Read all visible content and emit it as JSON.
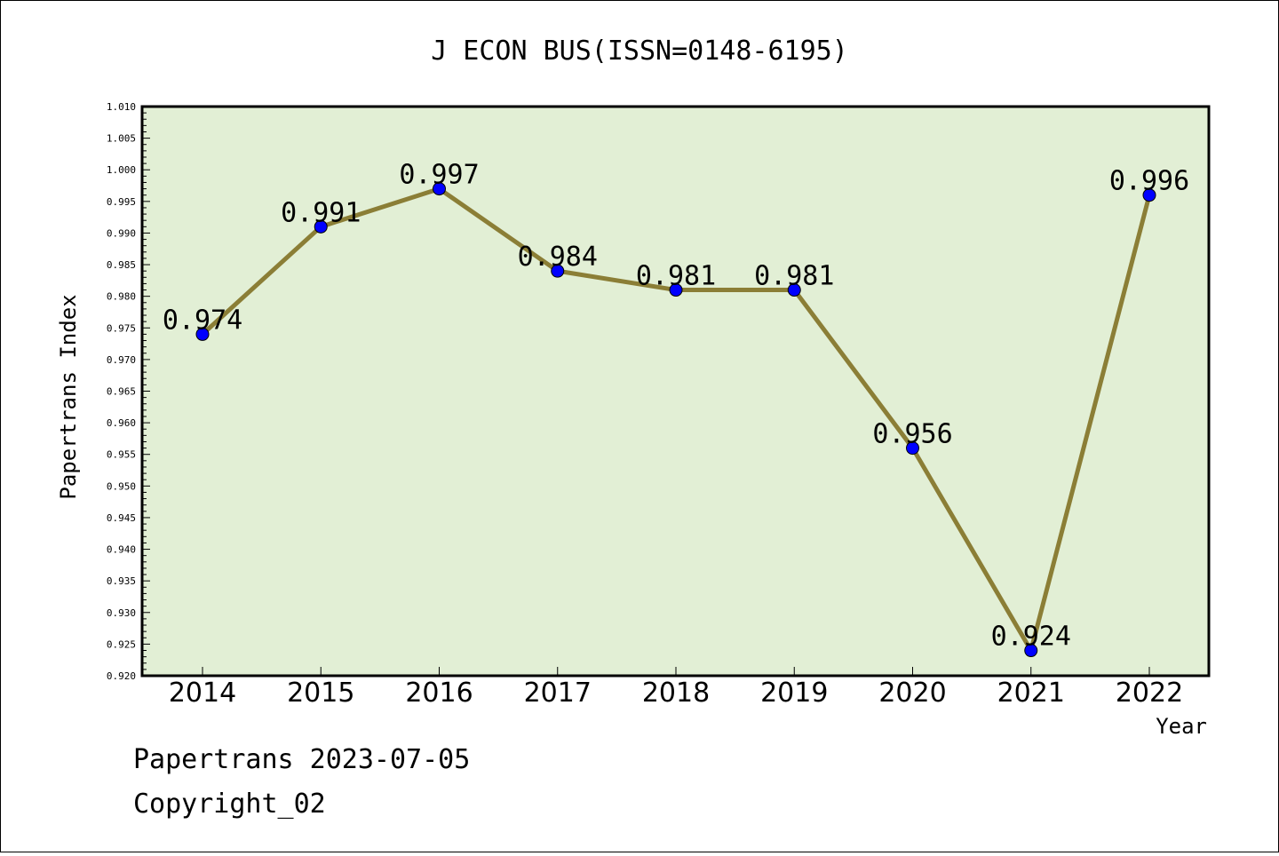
{
  "chart_data": {
    "type": "line",
    "title": "J ECON BUS(ISSN=0148-6195)",
    "xlabel": "Year",
    "ylabel": "Papertrans Index",
    "categories": [
      "2014",
      "2015",
      "2016",
      "2017",
      "2018",
      "2019",
      "2020",
      "2021",
      "2022"
    ],
    "values": [
      0.974,
      0.991,
      0.997,
      0.984,
      0.981,
      0.981,
      0.956,
      0.924,
      0.996
    ],
    "value_labels": [
      "0.974",
      "0.991",
      "0.997",
      "0.984",
      "0.981",
      "0.981",
      "0.956",
      "0.924",
      "0.996"
    ],
    "ylim": [
      0.92,
      1.01
    ],
    "yticks": [
      "0.920",
      "0.925",
      "0.930",
      "0.935",
      "0.940",
      "0.945",
      "0.950",
      "0.955",
      "0.960",
      "0.965",
      "0.970",
      "0.975",
      "0.980",
      "0.985",
      "0.990",
      "0.995",
      "1.000",
      "1.005",
      "1.010"
    ],
    "grid": false,
    "legend": "none",
    "colors": {
      "plot_background": "#e2efd5",
      "line": "#8b7e36",
      "marker": "#0000ff"
    }
  },
  "footer": {
    "line1": "Papertrans 2023-07-05",
    "line2": "Copyright_02"
  }
}
